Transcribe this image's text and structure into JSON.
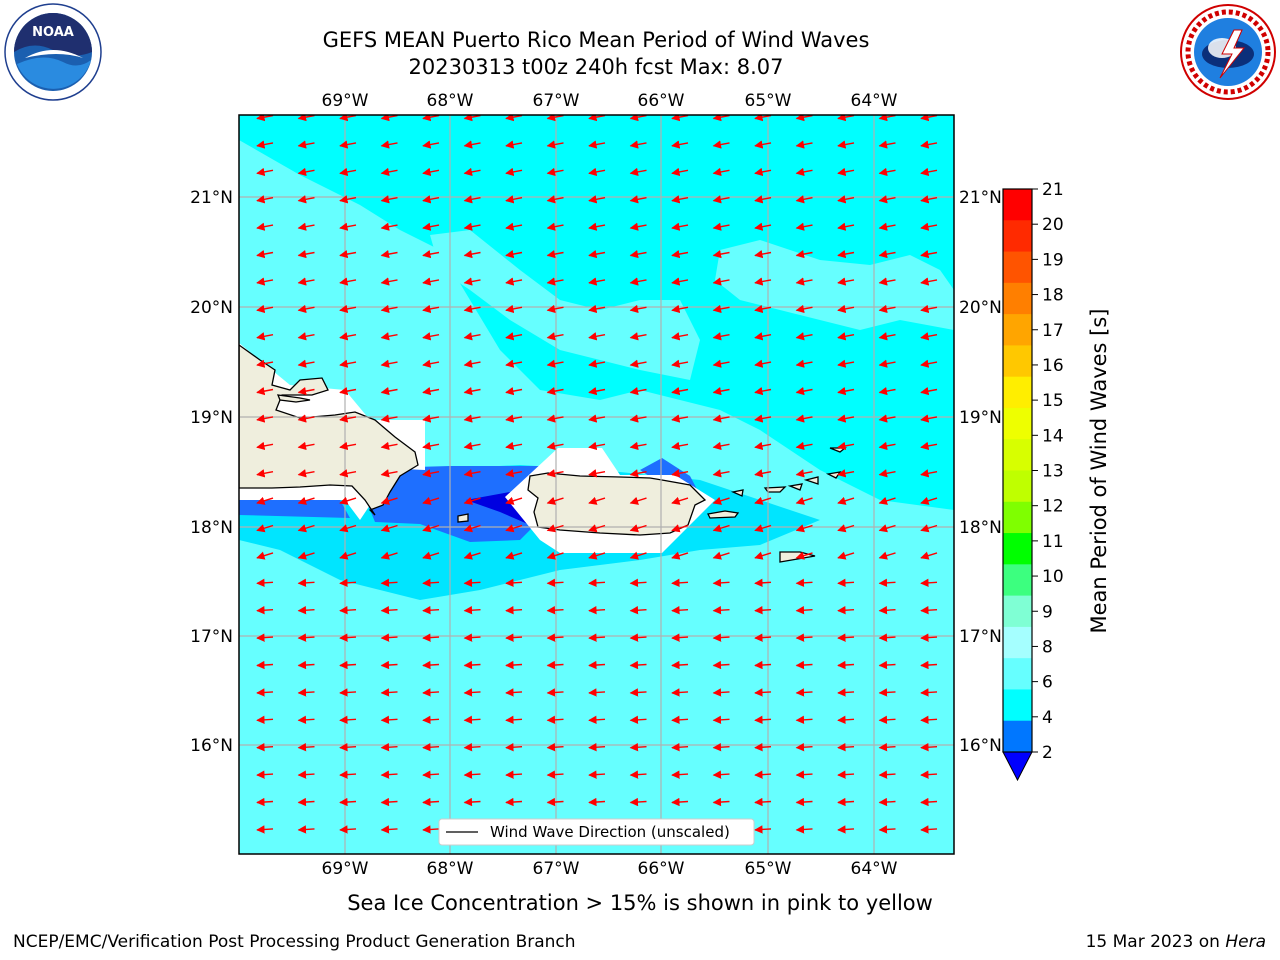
{
  "header": {
    "title_line1": "GEFS MEAN Puerto Rico Mean Period of Wind Waves",
    "title_line2": "20230313 t00z 240h fcst   Max: 8.07"
  },
  "logos": {
    "left": {
      "icon": "noaa-logo",
      "text": "NOAA"
    },
    "right": {
      "icon": "nws-logo"
    }
  },
  "map": {
    "lon_labels": [
      "69°W",
      "68°W",
      "67°W",
      "66°W",
      "65°W",
      "64°W"
    ],
    "lat_labels": [
      "21°N",
      "20°N",
      "19°N",
      "18°N",
      "17°N",
      "16°N"
    ],
    "legend_label": "Wind Wave Direction (unscaled)",
    "ocean_color": "#00ffff",
    "land_color": "#efeedd",
    "arrow_color": "#ff0000"
  },
  "colorbar": {
    "label": "Mean Period of Wind Waves [s]",
    "ticks": [
      "21",
      "20",
      "19",
      "18",
      "17",
      "16",
      "15",
      "14",
      "13",
      "12",
      "11",
      "10",
      "9",
      "8",
      "6",
      "4",
      "2"
    ],
    "colors": [
      "#ff0000",
      "#ff2a00",
      "#ff5400",
      "#ff7f00",
      "#ffa500",
      "#ffc800",
      "#ffee00",
      "#eeff00",
      "#d7ff00",
      "#bfff00",
      "#7fff00",
      "#00ff00",
      "#3cff7f",
      "#7fffd4",
      "#a5ffff",
      "#66ffff",
      "#00ffff",
      "#0077ff"
    ],
    "extend_color": "#0000ff"
  },
  "caption": "Sea Ice Concentration > 15% is shown in pink to yellow",
  "footer": {
    "left": "NCEP/EMC/Verification Post Processing Product Generation Branch",
    "right_date": "15 Mar 2023 on",
    "right_machine": "Hera"
  }
}
